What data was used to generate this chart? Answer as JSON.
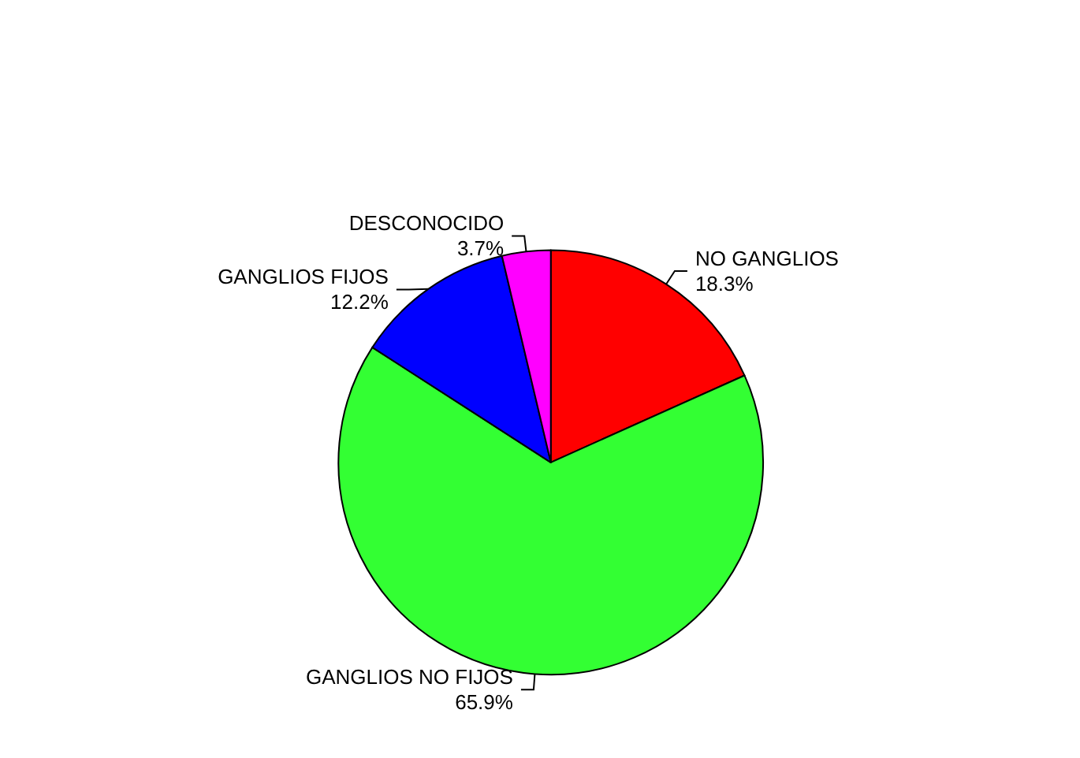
{
  "chart_data": {
    "type": "pie",
    "categories": [
      "NO GANGLIOS",
      "GANGLIOS NO FIJOS",
      "GANGLIOS FIJOS",
      "DESCONOCIDO"
    ],
    "values": [
      18.3,
      65.9,
      12.2,
      3.7
    ],
    "value_labels": [
      "18.3%",
      "65.9%",
      "12.2%",
      "3.7%"
    ],
    "colors": [
      "#ff0000",
      "#33ff33",
      "#0000ff",
      "#ff00ff"
    ],
    "legend": false
  }
}
